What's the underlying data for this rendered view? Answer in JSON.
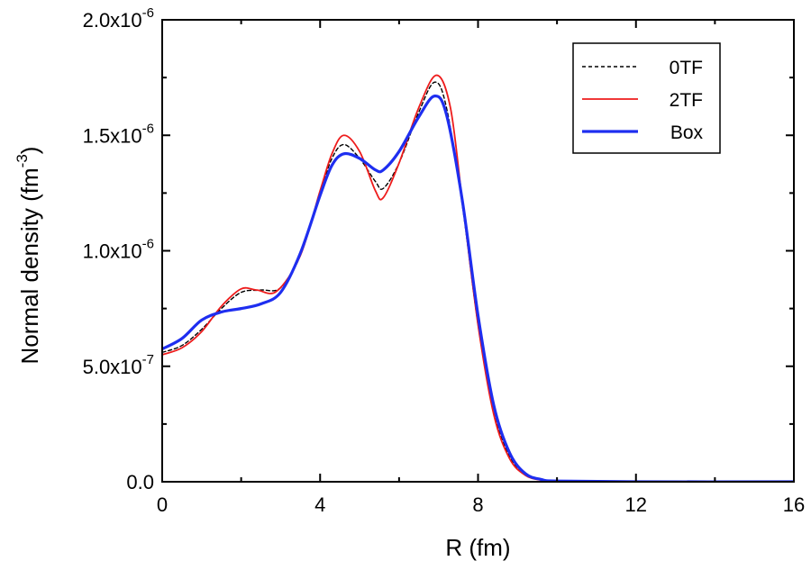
{
  "chart_data": {
    "type": "line",
    "xlabel": "R (fm)",
    "ylabel": "Normal density (fm",
    "ylabel_sup": "-3",
    "ylabel_close": ")",
    "xlim": [
      0,
      16
    ],
    "ylim": [
      0,
      2e-06
    ],
    "x_ticks": [
      {
        "value": 0,
        "label": "0"
      },
      {
        "value": 4,
        "label": "4"
      },
      {
        "value": 8,
        "label": "8"
      },
      {
        "value": 12,
        "label": "12"
      },
      {
        "value": 16,
        "label": "16"
      }
    ],
    "y_ticks": [
      {
        "value": 0,
        "label": "0.0",
        "sup": ""
      },
      {
        "value": 5e-07,
        "label": "5.0x10",
        "sup": "-7"
      },
      {
        "value": 1e-06,
        "label": "1.0x10",
        "sup": "-6"
      },
      {
        "value": 1.5e-06,
        "label": "1.5x10",
        "sup": "-6"
      },
      {
        "value": 2e-06,
        "label": "2.0x10",
        "sup": "-6"
      }
    ],
    "legend_position": "top-right",
    "grid": false,
    "series": [
      {
        "name": "0TF",
        "color": "#000000",
        "dash": "dashed",
        "points": [
          [
            0,
            5.6e-07
          ],
          [
            0.5,
            5.9e-07
          ],
          [
            1.0,
            6.6e-07
          ],
          [
            1.5,
            7.5e-07
          ],
          [
            2.0,
            8.2e-07
          ],
          [
            2.5,
            8.3e-07
          ],
          [
            3.0,
            8.4e-07
          ],
          [
            3.5,
            9.8e-07
          ],
          [
            4.0,
            1.25e-06
          ],
          [
            4.3,
            1.4e-06
          ],
          [
            4.6,
            1.46e-06
          ],
          [
            5.0,
            1.4e-06
          ],
          [
            5.4,
            1.3e-06
          ],
          [
            5.6,
            1.27e-06
          ],
          [
            6.0,
            1.38e-06
          ],
          [
            6.5,
            1.6e-06
          ],
          [
            6.9,
            1.73e-06
          ],
          [
            7.2,
            1.62e-06
          ],
          [
            7.6,
            1.2e-06
          ],
          [
            8.0,
            6.8e-07
          ],
          [
            8.4,
            3e-07
          ],
          [
            8.8,
            1.1e-07
          ],
          [
            9.2,
            3e-08
          ],
          [
            9.6,
            8e-09
          ],
          [
            10.0,
            2e-09
          ],
          [
            12.0,
            0
          ],
          [
            16.0,
            0
          ]
        ]
      },
      {
        "name": "2TF",
        "color": "#ee1c1c",
        "dash": "solid",
        "points": [
          [
            0,
            5.5e-07
          ],
          [
            0.5,
            5.8e-07
          ],
          [
            1.0,
            6.5e-07
          ],
          [
            1.5,
            7.6e-07
          ],
          [
            2.0,
            8.35e-07
          ],
          [
            2.4,
            8.3e-07
          ],
          [
            2.9,
            8.25e-07
          ],
          [
            3.5,
            9.8e-07
          ],
          [
            4.0,
            1.26e-06
          ],
          [
            4.3,
            1.42e-06
          ],
          [
            4.6,
            1.5e-06
          ],
          [
            5.0,
            1.43e-06
          ],
          [
            5.4,
            1.26e-06
          ],
          [
            5.6,
            1.23e-06
          ],
          [
            6.0,
            1.38e-06
          ],
          [
            6.5,
            1.62e-06
          ],
          [
            6.95,
            1.76e-06
          ],
          [
            7.3,
            1.62e-06
          ],
          [
            7.6,
            1.22e-06
          ],
          [
            8.0,
            6.8e-07
          ],
          [
            8.4,
            2.9e-07
          ],
          [
            8.8,
            1e-07
          ],
          [
            9.2,
            2.8e-08
          ],
          [
            9.6,
            7e-09
          ],
          [
            10.0,
            2e-09
          ],
          [
            12.0,
            0
          ],
          [
            16.0,
            0
          ]
        ]
      },
      {
        "name": "Box",
        "color": "#1e2ef0",
        "dash": "solid",
        "points": [
          [
            0,
            5.75e-07
          ],
          [
            0.5,
            6.2e-07
          ],
          [
            1.0,
            7e-07
          ],
          [
            1.5,
            7.35e-07
          ],
          [
            2.0,
            7.5e-07
          ],
          [
            2.5,
            7.7e-07
          ],
          [
            3.0,
            8.2e-07
          ],
          [
            3.5,
            9.9e-07
          ],
          [
            4.0,
            1.24e-06
          ],
          [
            4.3,
            1.37e-06
          ],
          [
            4.6,
            1.42e-06
          ],
          [
            5.0,
            1.4e-06
          ],
          [
            5.4,
            1.35e-06
          ],
          [
            5.6,
            1.35e-06
          ],
          [
            6.0,
            1.43e-06
          ],
          [
            6.5,
            1.58e-06
          ],
          [
            6.9,
            1.67e-06
          ],
          [
            7.2,
            1.59e-06
          ],
          [
            7.6,
            1.22e-06
          ],
          [
            8.0,
            7.2e-07
          ],
          [
            8.4,
            3.3e-07
          ],
          [
            8.8,
            1.25e-07
          ],
          [
            9.2,
            3.5e-08
          ],
          [
            9.6,
            1e-08
          ],
          [
            10.0,
            3e-09
          ],
          [
            12.0,
            0
          ],
          [
            16.0,
            0
          ]
        ]
      }
    ]
  }
}
